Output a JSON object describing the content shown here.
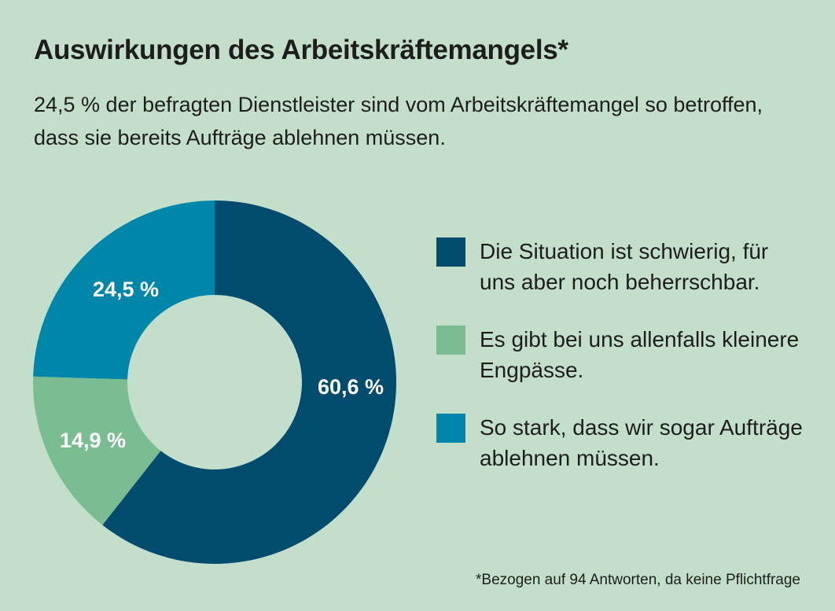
{
  "title": "Auswirkungen des Arbeitskräftemangels*",
  "subtitle": "24,5 % der befragten Dienstleister sind vom Arbeitskräftemangel so betroffen, dass sie bereits Aufträge ablehnen müssen.",
  "footnote": "*Bezogen auf 94 Antworten, da keine Pflichtfrage",
  "chart_data": {
    "type": "pie",
    "variant": "donut",
    "title": "Auswirkungen des Arbeitskräftemangels*",
    "categories": [
      "Die Situation ist schwierig, für uns aber noch beherrschbar.",
      "Es gibt bei uns allenfalls kleinere Engpässe.",
      "So stark, dass wir sogar Aufträge ablehnen müssen."
    ],
    "values": [
      60.6,
      14.9,
      24.5
    ],
    "labels": [
      "60,6 %",
      "14,9 %",
      "24,5 %"
    ],
    "colors": [
      "#004b6e",
      "#7bbd93",
      "#0086a8"
    ],
    "legend_position": "right"
  }
}
